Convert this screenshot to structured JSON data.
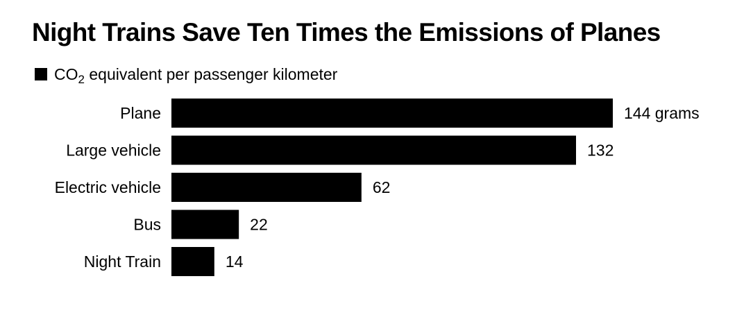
{
  "chart_data": {
    "type": "bar",
    "orientation": "horizontal",
    "title": "Night Trains Save Ten Times the Emissions of Planes",
    "legend": {
      "entry_prefix": "CO",
      "entry_subscript": "2",
      "entry_suffix": " equivalent per passenger kilometer",
      "placement": "top-left"
    },
    "categories": [
      "Plane",
      "Large vehicle",
      "Electric vehicle",
      "Bus",
      "Night Train"
    ],
    "series": [
      {
        "values": [
          144,
          132,
          62,
          22,
          14
        ],
        "color": "#000000"
      }
    ],
    "value_labels": [
      "144 grams",
      "132",
      "62",
      "22",
      "14"
    ],
    "xlim": [
      0,
      144
    ],
    "grid": false
  }
}
